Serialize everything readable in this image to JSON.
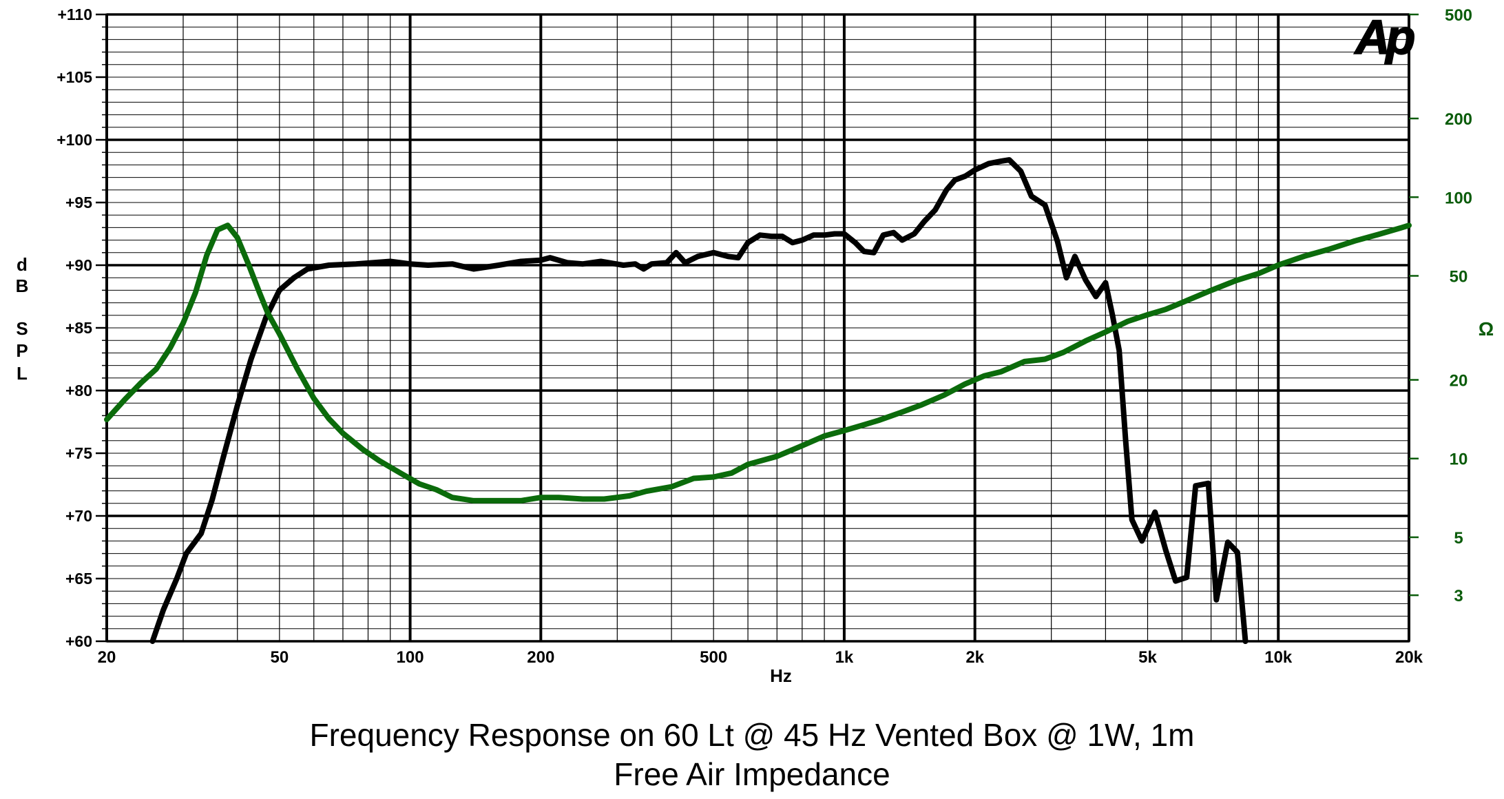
{
  "chart_data": {
    "type": "line",
    "title": "Frequency Response on 60 Lt @ 45 Hz Vented Box @ 1W, 1m",
    "subtitle": "Free Air Impedance",
    "logo": "Ap",
    "xlabel": "Hz",
    "ylabel": "dB SPL",
    "ylabel_letters": [
      "d",
      "B",
      "S",
      "P",
      "L"
    ],
    "y2label": "Ω",
    "xscale": "log",
    "xlim": [
      20,
      20000
    ],
    "ylim": [
      60,
      110
    ],
    "y2scale": "log",
    "y2lim": [
      2,
      500
    ],
    "grid": true,
    "colors": {
      "spl": "#000000",
      "impedance": "#0b6b0b",
      "right_axis": "#0b5c0b"
    },
    "x_tick_labels": [
      {
        "v": 20,
        "t": "20"
      },
      {
        "v": 50,
        "t": "50"
      },
      {
        "v": 100,
        "t": "100"
      },
      {
        "v": 200,
        "t": "200"
      },
      {
        "v": 500,
        "t": "500"
      },
      {
        "v": 1000,
        "t": "1k"
      },
      {
        "v": 2000,
        "t": "2k"
      },
      {
        "v": 5000,
        "t": "5k"
      },
      {
        "v": 10000,
        "t": "10k"
      },
      {
        "v": 20000,
        "t": "20k"
      }
    ],
    "y_tick_labels": [
      {
        "v": 110,
        "t": "+110"
      },
      {
        "v": 105,
        "t": "+105"
      },
      {
        "v": 100,
        "t": "+100"
      },
      {
        "v": 95,
        "t": "+95"
      },
      {
        "v": 90,
        "t": "+90"
      },
      {
        "v": 85,
        "t": "+85"
      },
      {
        "v": 80,
        "t": "+80"
      },
      {
        "v": 75,
        "t": "+75"
      },
      {
        "v": 70,
        "t": "+70"
      },
      {
        "v": 65,
        "t": "+65"
      },
      {
        "v": 60,
        "t": "+60"
      }
    ],
    "y2_tick_labels": [
      {
        "v": 500,
        "t": "500"
      },
      {
        "v": 200,
        "t": "200"
      },
      {
        "v": 100,
        "t": "100"
      },
      {
        "v": 50,
        "t": "50"
      },
      {
        "v": 20,
        "t": "20"
      },
      {
        "v": 10,
        "t": "10"
      },
      {
        "v": 5,
        "t": "5"
      },
      {
        "v": 3,
        "t": "3"
      }
    ],
    "series": [
      {
        "name": "Frequency Response",
        "axis": "left",
        "points": [
          [
            25.5,
            60
          ],
          [
            27,
            62.5
          ],
          [
            29,
            65
          ],
          [
            30.5,
            67
          ],
          [
            33,
            68.6
          ],
          [
            35,
            71.3
          ],
          [
            37,
            74.5
          ],
          [
            40,
            78.8
          ],
          [
            43,
            82.5
          ],
          [
            46.5,
            85.8
          ],
          [
            50,
            88
          ],
          [
            54,
            89
          ],
          [
            58,
            89.7
          ],
          [
            65,
            90
          ],
          [
            75,
            90.1
          ],
          [
            90,
            90.3
          ],
          [
            100,
            90.1
          ],
          [
            110,
            90
          ],
          [
            125,
            90.1
          ],
          [
            140,
            89.7
          ],
          [
            160,
            90
          ],
          [
            180,
            90.3
          ],
          [
            200,
            90.4
          ],
          [
            210,
            90.6
          ],
          [
            230,
            90.2
          ],
          [
            250,
            90.1
          ],
          [
            275,
            90.3
          ],
          [
            310,
            90
          ],
          [
            330,
            90.1
          ],
          [
            345,
            89.7
          ],
          [
            360,
            90.1
          ],
          [
            390,
            90.2
          ],
          [
            410,
            91
          ],
          [
            430,
            90.2
          ],
          [
            460,
            90.7
          ],
          [
            500,
            91
          ],
          [
            540,
            90.7
          ],
          [
            570,
            90.6
          ],
          [
            600,
            91.8
          ],
          [
            640,
            92.4
          ],
          [
            680,
            92.3
          ],
          [
            720,
            92.3
          ],
          [
            760,
            91.8
          ],
          [
            800,
            92
          ],
          [
            850,
            92.4
          ],
          [
            900,
            92.4
          ],
          [
            950,
            92.5
          ],
          [
            1000,
            92.5
          ],
          [
            1060,
            91.8
          ],
          [
            1110,
            91.1
          ],
          [
            1170,
            91
          ],
          [
            1230,
            92.4
          ],
          [
            1300,
            92.6
          ],
          [
            1360,
            92
          ],
          [
            1450,
            92.5
          ],
          [
            1530,
            93.5
          ],
          [
            1620,
            94.4
          ],
          [
            1720,
            96
          ],
          [
            1800,
            96.8
          ],
          [
            1900,
            97.1
          ],
          [
            2000,
            97.6
          ],
          [
            2150,
            98.1
          ],
          [
            2300,
            98.3
          ],
          [
            2400,
            98.4
          ],
          [
            2550,
            97.5
          ],
          [
            2700,
            95.5
          ],
          [
            2900,
            94.8
          ],
          [
            3100,
            91.9
          ],
          [
            3250,
            89
          ],
          [
            3400,
            90.7
          ],
          [
            3600,
            88.8
          ],
          [
            3800,
            87.5
          ],
          [
            4000,
            88.6
          ],
          [
            4150,
            86
          ],
          [
            4300,
            83.2
          ],
          [
            4450,
            76
          ],
          [
            4600,
            69.7
          ],
          [
            4850,
            68
          ],
          [
            5200,
            70.3
          ],
          [
            5500,
            67.3
          ],
          [
            5800,
            64.8
          ],
          [
            6150,
            65.1
          ],
          [
            6450,
            72.4
          ],
          [
            6900,
            72.6
          ],
          [
            7200,
            63.3
          ],
          [
            7650,
            67.9
          ],
          [
            8050,
            67.1
          ],
          [
            8400,
            60
          ]
        ]
      },
      {
        "name": "Free Air Impedance",
        "axis": "right",
        "points": [
          [
            20,
            14.1
          ],
          [
            22,
            16.8
          ],
          [
            24,
            19.5
          ],
          [
            26,
            22
          ],
          [
            28,
            26.5
          ],
          [
            30,
            33
          ],
          [
            32,
            43
          ],
          [
            34,
            60
          ],
          [
            36,
            75
          ],
          [
            38,
            78
          ],
          [
            40,
            70
          ],
          [
            42.5,
            55
          ],
          [
            45,
            43
          ],
          [
            47,
            36
          ],
          [
            50,
            30
          ],
          [
            55,
            22
          ],
          [
            60,
            17
          ],
          [
            65,
            14.2
          ],
          [
            70,
            12.5
          ],
          [
            78,
            10.8
          ],
          [
            85,
            9.8
          ],
          [
            95,
            8.8
          ],
          [
            105,
            8
          ],
          [
            115,
            7.6
          ],
          [
            125,
            7.1
          ],
          [
            140,
            6.9
          ],
          [
            160,
            6.9
          ],
          [
            180,
            6.9
          ],
          [
            200,
            7.1
          ],
          [
            220,
            7.1
          ],
          [
            250,
            7.0
          ],
          [
            280,
            7.0
          ],
          [
            320,
            7.2
          ],
          [
            350,
            7.5
          ],
          [
            400,
            7.8
          ],
          [
            450,
            8.4
          ],
          [
            500,
            8.5
          ],
          [
            550,
            8.8
          ],
          [
            600,
            9.5
          ],
          [
            700,
            10.2
          ],
          [
            800,
            11.2
          ],
          [
            900,
            12.2
          ],
          [
            1000,
            12.8
          ],
          [
            1100,
            13.4
          ],
          [
            1200,
            14
          ],
          [
            1350,
            15
          ],
          [
            1500,
            16
          ],
          [
            1700,
            17.5
          ],
          [
            1900,
            19.3
          ],
          [
            2100,
            20.7
          ],
          [
            2300,
            21.5
          ],
          [
            2600,
            23.5
          ],
          [
            2900,
            24
          ],
          [
            3200,
            25.5
          ],
          [
            3600,
            28.2
          ],
          [
            4000,
            30.5
          ],
          [
            4500,
            33.5
          ],
          [
            5000,
            35.5
          ],
          [
            5500,
            37.2
          ],
          [
            6000,
            39.5
          ],
          [
            7000,
            44
          ],
          [
            8000,
            48
          ],
          [
            9000,
            51
          ],
          [
            10000,
            55
          ],
          [
            11500,
            59.5
          ],
          [
            13000,
            63
          ],
          [
            15000,
            68
          ],
          [
            17000,
            72
          ],
          [
            19000,
            76
          ],
          [
            20000,
            78
          ]
        ]
      }
    ]
  }
}
